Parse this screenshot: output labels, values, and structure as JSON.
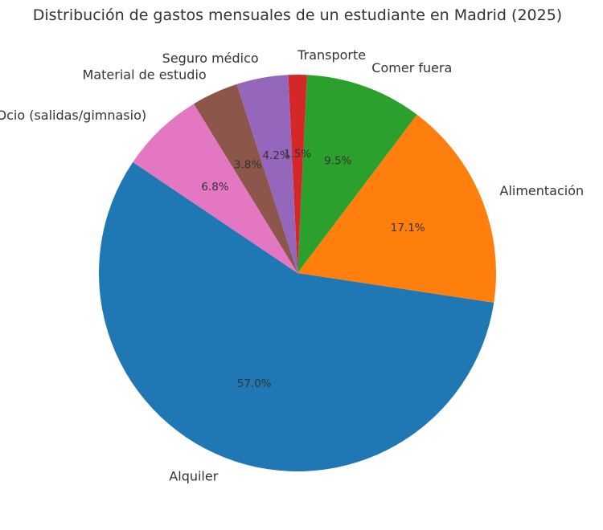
{
  "chart_data": {
    "type": "pie",
    "title": "Distribución de gastos mensuales de un estudiante en Madrid (2025)",
    "start_angle_deg": 146,
    "direction": "counterclockwise",
    "slices": [
      {
        "label": "Alquiler",
        "percent": 57.0,
        "percent_label": "57.0%",
        "color": "#1f77b4"
      },
      {
        "label": "Alimentación",
        "percent": 17.1,
        "percent_label": "17.1%",
        "color": "#ff7f0e"
      },
      {
        "label": "Comer fuera",
        "percent": 9.5,
        "percent_label": "9.5%",
        "color": "#2ca02c"
      },
      {
        "label": "Transporte",
        "percent": 1.5,
        "percent_label": "1.5%",
        "color": "#d62728"
      },
      {
        "label": "Seguro médico",
        "percent": 4.2,
        "percent_label": "4.2%",
        "color": "#9467bd"
      },
      {
        "label": "Material de estudio",
        "percent": 3.8,
        "percent_label": "3.8%",
        "color": "#8c564b"
      },
      {
        "label": "Ocio (salidas/gimnasio)",
        "percent": 6.8,
        "percent_label": "6.8%",
        "color": "#e377c2"
      }
    ]
  }
}
